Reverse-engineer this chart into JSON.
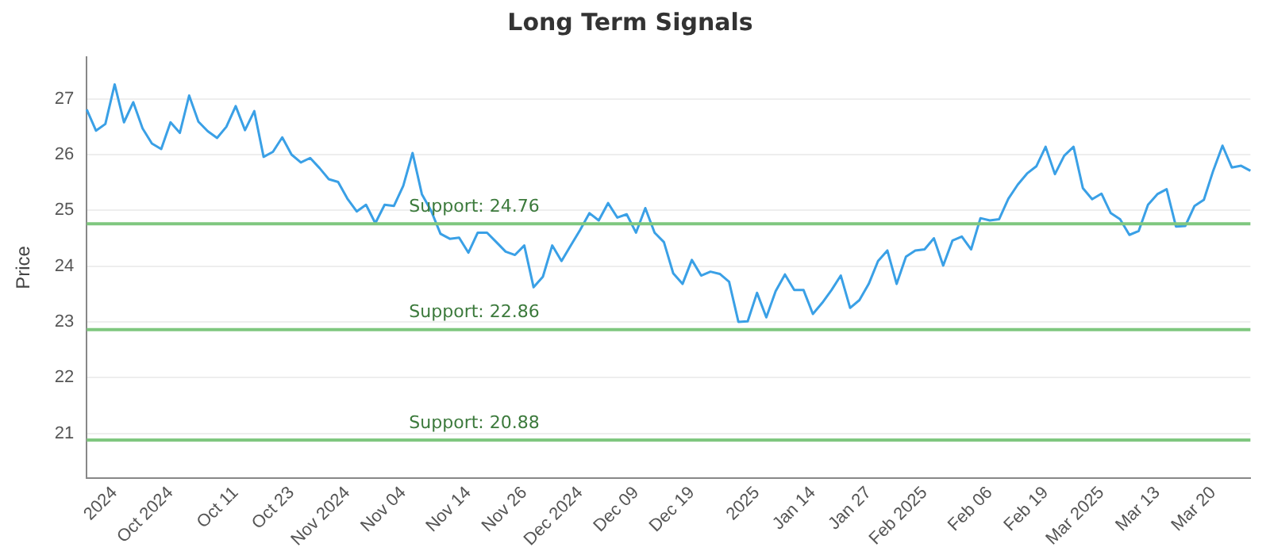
{
  "chart_data": {
    "type": "line",
    "title": "Long Term Signals",
    "ylabel": "Price",
    "categories": [
      null,
      null,
      null,
      "2024",
      null,
      null,
      null,
      null,
      null,
      "Oct 2024",
      null,
      null,
      null,
      null,
      null,
      null,
      "Oct 11",
      null,
      null,
      null,
      null,
      null,
      "Oct 23",
      null,
      null,
      null,
      null,
      null,
      "Nov 2024",
      null,
      null,
      null,
      null,
      null,
      "Nov 04",
      null,
      null,
      null,
      null,
      null,
      null,
      "Nov 14",
      null,
      null,
      null,
      null,
      null,
      "Nov 26",
      null,
      null,
      null,
      null,
      null,
      "Dec 2024",
      null,
      null,
      null,
      null,
      null,
      "Dec 09",
      null,
      null,
      null,
      null,
      null,
      "Dec 19",
      null,
      null,
      null,
      null,
      null,
      null,
      "2025",
      null,
      null,
      null,
      null,
      null,
      "Jan 14",
      null,
      null,
      null,
      null,
      null,
      "Jan 27",
      null,
      null,
      null,
      null,
      null,
      "Feb 2025",
      null,
      null,
      null,
      null,
      null,
      null,
      "Feb 06",
      null,
      null,
      null,
      null,
      null,
      "Feb 19",
      null,
      null,
      null,
      null,
      null,
      "Mar 2025",
      null,
      null,
      null,
      null,
      null,
      "Mar 13",
      null,
      null,
      null,
      null,
      null,
      "Mar 20",
      null,
      null,
      null,
      null
    ],
    "series": [
      {
        "color": "#3aa0e6",
        "values": [
          26.81,
          26.43,
          26.55,
          27.26,
          26.58,
          26.94,
          26.47,
          26.2,
          26.1,
          26.58,
          26.39,
          27.06,
          26.59,
          26.42,
          26.3,
          26.5,
          26.87,
          26.44,
          26.78,
          25.96,
          26.05,
          26.31,
          26.0,
          25.86,
          25.94,
          25.76,
          25.56,
          25.51,
          25.21,
          24.98,
          25.1,
          24.77,
          25.1,
          25.08,
          25.44,
          26.03,
          25.29,
          24.99,
          24.58,
          24.49,
          24.51,
          24.24,
          24.6,
          24.6,
          24.43,
          24.26,
          24.2,
          24.37,
          23.62,
          23.81,
          24.37,
          24.09,
          24.37,
          24.65,
          24.95,
          24.82,
          25.13,
          24.87,
          24.93,
          24.6,
          25.04,
          24.6,
          24.43,
          23.87,
          23.68,
          24.11,
          23.83,
          23.9,
          23.86,
          23.72,
          23.0,
          23.01,
          23.52,
          23.08,
          23.55,
          23.85,
          23.57,
          23.57,
          23.14,
          23.34,
          23.57,
          23.83,
          23.25,
          23.39,
          23.68,
          24.09,
          24.28,
          23.68,
          24.17,
          24.28,
          24.3,
          24.5,
          24.01,
          24.46,
          24.53,
          24.3,
          24.86,
          24.82,
          24.84,
          25.21,
          25.46,
          25.66,
          25.79,
          26.14,
          25.65,
          25.98,
          26.14,
          25.4,
          25.2,
          25.3,
          24.95,
          24.84,
          24.56,
          24.63,
          25.1,
          25.29,
          25.38,
          24.71,
          24.72,
          25.08,
          25.19,
          25.71,
          26.16,
          25.77,
          25.8,
          25.71
        ]
      }
    ],
    "ylim": [
      20.2,
      27.75
    ],
    "yticks": [
      21,
      22,
      23,
      24,
      25,
      26,
      27
    ],
    "grid": "y",
    "marker": "none",
    "line_style": "solid",
    "legend": false,
    "ref_lines": [
      {
        "axis": "y",
        "value": 24.76,
        "label": "Support: 24.76",
        "color": "#7fc77f"
      },
      {
        "axis": "y",
        "value": 22.86,
        "label": "Support: 22.86",
        "color": "#7fc77f"
      },
      {
        "axis": "y",
        "value": 20.88,
        "label": "Support: 20.88",
        "color": "#7fc77f"
      }
    ]
  }
}
